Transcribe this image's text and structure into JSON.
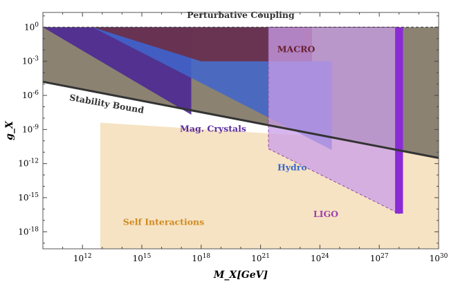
{
  "chart_data": {
    "type": "area",
    "xlabel": "M_X[GeV]",
    "ylabel": "g_X",
    "x_scale": "log10",
    "y_scale": "log10",
    "xlim_log10": [
      10,
      30
    ],
    "ylim_log10": [
      -19.5,
      1.3
    ],
    "x_ticks_log10": [
      12,
      15,
      18,
      21,
      24,
      27,
      30
    ],
    "y_ticks_log10": [
      0,
      -3,
      -6,
      -9,
      -12,
      -15,
      -18
    ],
    "colors": {
      "self_interactions": "#f6e3c3",
      "stability": "#8b8272",
      "mag_crystals": "#4d2a92",
      "hydro": "#3f66cc",
      "macro": "#6e2a3e",
      "ligo": "#c99ee8",
      "ligo_dark": "#8f4aa8",
      "ligo_bar": "#8a2bd6",
      "line": "#333333",
      "label_self": "#d08a22",
      "label_mag": "#5a2aa0",
      "label_hydro": "#3a66d0",
      "label_macro": "#6a2030",
      "label_ligo": "#a040b0"
    },
    "regions": [
      {
        "name": "Self Interactions",
        "label_color_key": "label_self",
        "polygon_log10": [
          [
            10,
            -19.5
          ],
          [
            12.9,
            -19.5
          ],
          [
            12.9,
            -8.4
          ],
          [
            30,
            -10.3
          ],
          [
            30,
            -19.5
          ]
        ]
      },
      {
        "name": "Stability Bound",
        "polygon_log10": [
          [
            10,
            -4.8
          ],
          [
            30,
            -11.5
          ],
          [
            30,
            0
          ],
          [
            10,
            0
          ]
        ]
      },
      {
        "name": "Mag. Crystals",
        "polygon_log10": [
          [
            10,
            0
          ],
          [
            17.5,
            0
          ],
          [
            17.5,
            -7.7
          ],
          [
            10,
            0
          ]
        ]
      },
      {
        "name": "Hydro",
        "polygon_log10": [
          [
            12.5,
            0
          ],
          [
            23,
            0
          ],
          [
            23.6,
            -3
          ],
          [
            24.6,
            -3
          ],
          [
            24.6,
            -10.8
          ],
          [
            12.5,
            0
          ]
        ]
      },
      {
        "name": "MACRO",
        "polygon_log10": [
          [
            12.5,
            0
          ],
          [
            23.6,
            0
          ],
          [
            23.6,
            -3
          ],
          [
            18,
            -3
          ],
          [
            12.5,
            0
          ]
        ]
      },
      {
        "name": "LIGO",
        "polygon_log10": [
          [
            21.4,
            0
          ],
          [
            28,
            0
          ],
          [
            28,
            -16.4
          ],
          [
            21.4,
            -10.7
          ]
        ]
      },
      {
        "name": "LIGO_bar",
        "polygon_log10": [
          [
            27.8,
            0
          ],
          [
            28.2,
            0
          ],
          [
            28.2,
            -16.4
          ],
          [
            27.8,
            -16.4
          ]
        ]
      }
    ],
    "lines": [
      {
        "name": "Stability Bound",
        "points_log10": [
          [
            10,
            -4.8
          ],
          [
            30,
            -11.5
          ]
        ]
      },
      {
        "name": "Perturbative Coupling",
        "points_log10": [
          [
            10,
            0
          ],
          [
            30,
            0
          ]
        ],
        "dashed": true
      }
    ],
    "annotations": [
      {
        "text": "Perturbative Coupling",
        "x_log10": 20,
        "y_log10": 0.8,
        "color_key": "line"
      },
      {
        "text": "MACRO",
        "x_log10": 22.8,
        "y_log10": -2.2,
        "color_key": "label_macro"
      },
      {
        "text": "Stability Bound",
        "x_log10": 13.2,
        "y_log10": -7,
        "color_key": "line"
      },
      {
        "text": "Mag. Crystals",
        "x_log10": 18.6,
        "y_log10": -9.2,
        "color_key": "label_mag"
      },
      {
        "text": "Hydro",
        "x_log10": 22.6,
        "y_log10": -12.6,
        "color_key": "label_hydro"
      },
      {
        "text": "LIGO",
        "x_log10": 24.3,
        "y_log10": -16.7,
        "color_key": "label_ligo"
      },
      {
        "text": "Self Interactions",
        "x_log10": 16.1,
        "y_log10": -17.4,
        "color_key": "label_self"
      }
    ]
  }
}
